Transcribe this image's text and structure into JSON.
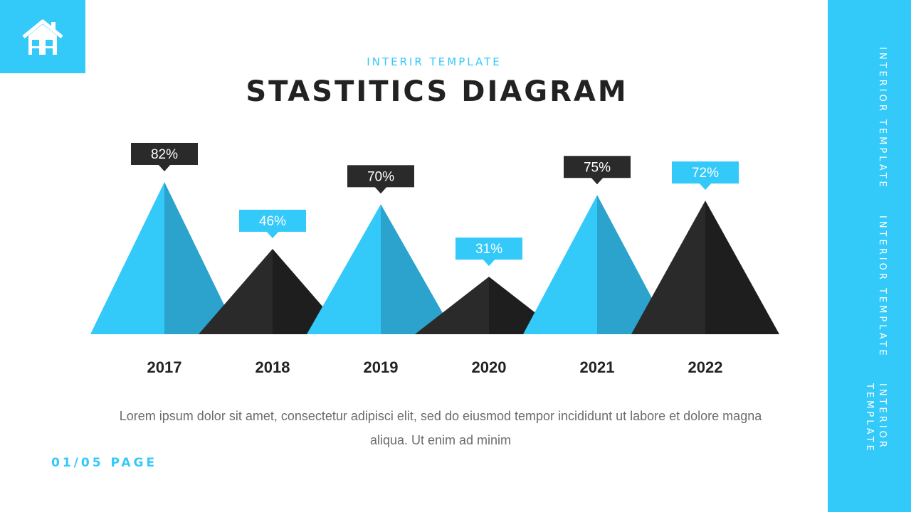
{
  "header": {
    "kicker": "INTERIR TEMPLATE",
    "title": "STASTITICS DIAGRAM"
  },
  "sidebar": {
    "labels": [
      "INTERIOR TEMPLATE",
      "INTERIOR TEMPLATE",
      "INTERIOR TEMPLATE"
    ]
  },
  "logo": {
    "icon": "house-icon"
  },
  "body": {
    "paragraph": "Lorem ipsum dolor sit amet, consectetur adipisci elit, sed do eiusmod tempor incididunt ut labore et dolore magna aliqua. Ut enim ad minim"
  },
  "footer": {
    "page": "01/05 PAGE"
  },
  "colors": {
    "accent": "#33C9F9",
    "accent_shade": "#2BA3CC",
    "dark": "#2A2A2A",
    "dark_shade": "#1E1E1E",
    "text_dark": "#222222"
  },
  "chart_data": {
    "type": "bar",
    "categories": [
      "2017",
      "2018",
      "2019",
      "2020",
      "2021",
      "2022"
    ],
    "values": [
      82,
      46,
      70,
      31,
      75,
      72
    ],
    "value_labels": [
      "82%",
      "46%",
      "70%",
      "31%",
      "75%",
      "72%"
    ],
    "bar_colors": [
      "accent",
      "dark",
      "accent",
      "dark",
      "accent",
      "dark"
    ],
    "label_colors": [
      "dark",
      "accent",
      "dark",
      "accent",
      "dark",
      "accent"
    ],
    "shape": "triangle",
    "title": "",
    "xlabel": "",
    "ylabel": "",
    "ylim": [
      0,
      100
    ],
    "grid": false
  }
}
